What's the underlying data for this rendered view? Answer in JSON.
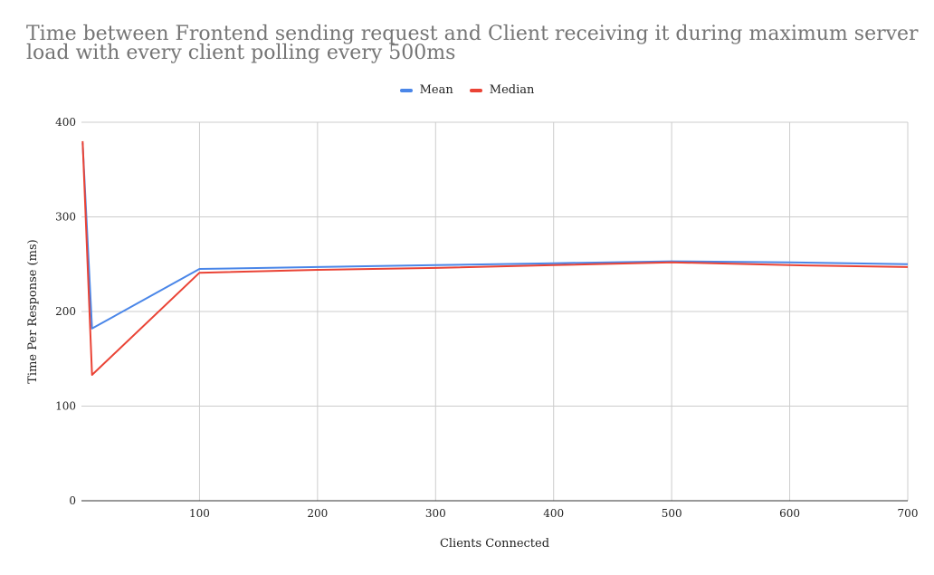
{
  "chart_data": {
    "type": "line",
    "title": "Time between Frontend sending request and Client receiving it during maximum server load with every client polling every 500ms",
    "xlabel": "Clients Connected",
    "ylabel": "Time Per Response (ms)",
    "xlim": [
      0,
      700
    ],
    "ylim": [
      0,
      400
    ],
    "xticks": [
      100,
      200,
      300,
      400,
      500,
      600,
      700
    ],
    "yticks": [
      0,
      100,
      200,
      300,
      400
    ],
    "grid": true,
    "legend_position": "top",
    "series": [
      {
        "name": "Mean",
        "color": "#4a86e8",
        "points": [
          [
            1,
            378
          ],
          [
            9,
            182
          ],
          [
            100,
            245
          ],
          [
            200,
            247
          ],
          [
            300,
            249
          ],
          [
            400,
            251
          ],
          [
            500,
            253
          ],
          [
            600,
            252
          ],
          [
            700,
            250
          ]
        ]
      },
      {
        "name": "Median",
        "color": "#ea4335",
        "points": [
          [
            1,
            380
          ],
          [
            9,
            133
          ],
          [
            100,
            241
          ],
          [
            200,
            244
          ],
          [
            300,
            246
          ],
          [
            400,
            249
          ],
          [
            500,
            252
          ],
          [
            600,
            249
          ],
          [
            700,
            247
          ]
        ]
      }
    ]
  }
}
